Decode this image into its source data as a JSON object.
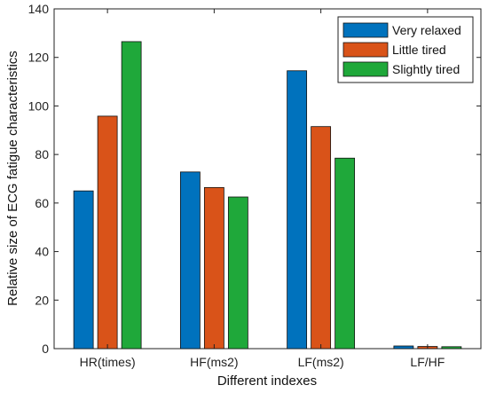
{
  "chart_data": {
    "type": "bar",
    "xlabel": "Different indexes",
    "ylabel": "Relative size of ECG fatigue characteristics",
    "categories": [
      "HR(times)",
      "HF(ms2)",
      "LF(ms2)",
      "LF/HF"
    ],
    "series": [
      {
        "name": "Very relaxed",
        "color": "#0072BD",
        "values": [
          65,
          72.8,
          114.5,
          1.1
        ]
      },
      {
        "name": "Little tired",
        "color": "#D95319",
        "values": [
          95.8,
          66.4,
          91.5,
          0.9
        ]
      },
      {
        "name": "Slightly tired",
        "color": "#1FA83A",
        "values": [
          126.5,
          62.5,
          78.5,
          0.8
        ]
      }
    ],
    "ylim": [
      0,
      140
    ],
    "yticks": [
      0,
      20,
      40,
      60,
      80,
      100,
      120,
      140
    ],
    "legend_position": "top-right",
    "grid": false
  }
}
